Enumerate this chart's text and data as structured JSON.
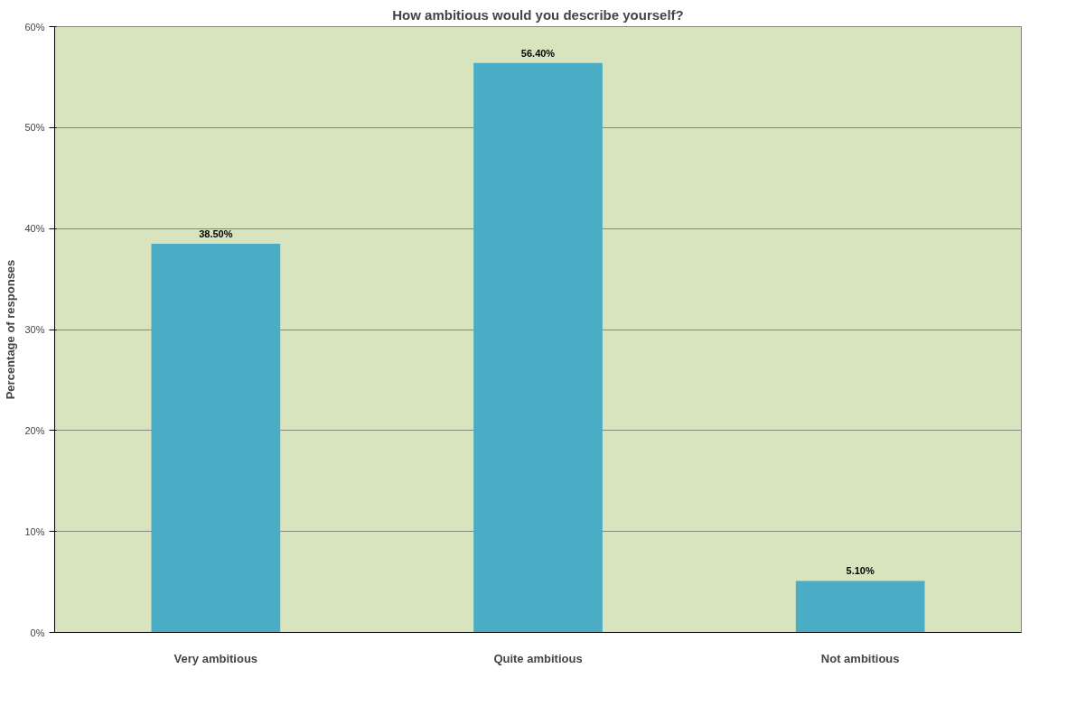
{
  "chart_data": {
    "type": "bar",
    "title": "How ambitious would you describe yourself?",
    "ylabel": "Percentage of responses",
    "categories": [
      "Very ambitious",
      "Quite ambitious",
      "Not ambitious"
    ],
    "values": [
      38.5,
      56.4,
      5.1
    ],
    "color": "#4bacc6",
    "value_labels": [
      "38.50%",
      "56.40%",
      "5.10%"
    ],
    "ylim": [
      0,
      60
    ],
    "yticks": [
      {
        "value": 0,
        "label": "0%"
      },
      {
        "value": 10,
        "label": "10%"
      },
      {
        "value": 20,
        "label": "20%"
      },
      {
        "value": 30,
        "label": "30%"
      },
      {
        "value": 40,
        "label": "40%"
      },
      {
        "value": 50,
        "label": "50%"
      },
      {
        "value": 60,
        "label": "60%"
      }
    ],
    "grid": "y"
  }
}
